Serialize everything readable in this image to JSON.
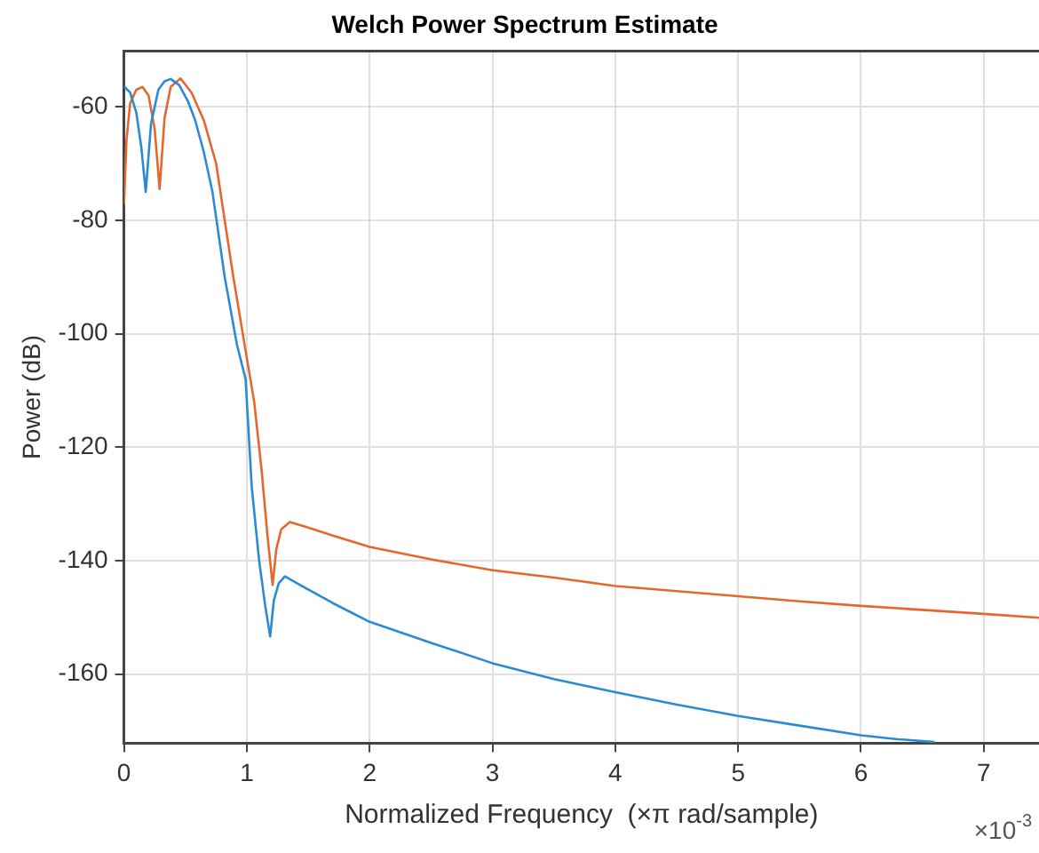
{
  "chart_data": {
    "type": "line",
    "title": "Welch Power Spectrum Estimate",
    "xlabel": "Normalized Frequency  (×π rad/sample)",
    "ylabel": "Power (dB)",
    "annotations": [
      "×10$^{-3}$"
    ],
    "xlim": [
      0,
      7.45
    ],
    "xticks": [
      0,
      1,
      2,
      3,
      4,
      5,
      6,
      7
    ],
    "ylim": [
      -172.2,
      -50.2
    ],
    "yticks": [
      -160,
      -140,
      -120,
      -100,
      -80,
      -60
    ],
    "grid": true,
    "legend": false,
    "marker": "none",
    "line_style": "solid",
    "series": [
      {
        "color": "#2b8ad4",
        "x": [
          0,
          0.05,
          0.1,
          0.14,
          0.177,
          0.22,
          0.28,
          0.33,
          0.38,
          0.45,
          0.52,
          0.58,
          0.65,
          0.72,
          0.82,
          0.92,
          0.99,
          1.04,
          1.1,
          1.15,
          1.19,
          1.22,
          1.26,
          1.31,
          1.45,
          1.7,
          2.0,
          2.5,
          3.0,
          3.5,
          4.0,
          4.5,
          5.0,
          5.5,
          6.0,
          6.3,
          6.6
        ],
        "values": [
          -56.4,
          -57.5,
          -61,
          -67,
          -75,
          -63,
          -57,
          -55.5,
          -55.1,
          -56.2,
          -59,
          -62.4,
          -68,
          -75,
          -90,
          -102,
          -108,
          -127,
          -140,
          -148,
          -153.4,
          -147,
          -144,
          -142.8,
          -144.5,
          -147.5,
          -150.8,
          -154.5,
          -158.1,
          -160.9,
          -163.2,
          -165.4,
          -167.4,
          -169.1,
          -170.8,
          -171.5,
          -172
        ]
      },
      {
        "color": "#e5672c",
        "x": [
          0,
          0.02,
          0.05,
          0.1,
          0.15,
          0.2,
          0.25,
          0.29,
          0.33,
          0.38,
          0.46,
          0.55,
          0.65,
          0.75,
          0.89,
          0.99,
          1.06,
          1.12,
          1.17,
          1.21,
          1.24,
          1.28,
          1.35,
          1.5,
          1.7,
          2.0,
          2.5,
          3.0,
          3.5,
          4.0,
          4.5,
          5.0,
          5.5,
          6.0,
          6.5,
          7.0,
          7.45
        ],
        "values": [
          -77.2,
          -66,
          -59.4,
          -57,
          -56.5,
          -58,
          -64,
          -74.5,
          -62,
          -56.5,
          -55,
          -57.5,
          -62.4,
          -70,
          -90,
          -103,
          -112,
          -124,
          -136,
          -144.3,
          -138,
          -134.5,
          -133.2,
          -134.2,
          -135.6,
          -137.6,
          -139.8,
          -141.7,
          -143,
          -144.5,
          -145.4,
          -146.3,
          -147.2,
          -148,
          -148.7,
          -149.4,
          -150.1
        ]
      }
    ]
  }
}
